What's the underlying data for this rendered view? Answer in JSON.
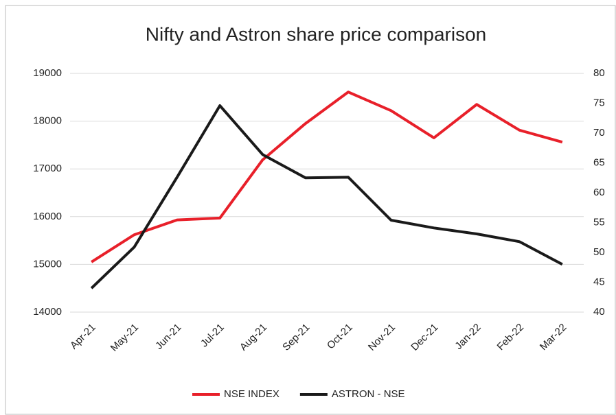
{
  "chart_data": {
    "type": "line",
    "title": "Nifty and Astron share price comparison",
    "categories": [
      "Apr-21",
      "May-21",
      "Jun-21",
      "Jul-21",
      "Aug-21",
      "Sep-21",
      "Oct-21",
      "Nov-21",
      "Dec-21",
      "Jan-22",
      "Feb-22",
      "Mar-22"
    ],
    "series": [
      {
        "name": "NSE INDEX",
        "color": "#e8202a",
        "values": [
          15050,
          15620,
          15930,
          15970,
          17190,
          17950,
          18610,
          18220,
          17650,
          18350,
          17810,
          17560
        ]
      },
      {
        "name": "ASTRON - NSE",
        "color": "#1a1a1a",
        "axis": "y2",
        "values": [
          44.0,
          50.9,
          62.6,
          74.6,
          66.4,
          62.5,
          62.6,
          55.4,
          54.1,
          53.1,
          51.8,
          48.0
        ]
      }
    ],
    "ylim": [
      14000,
      19000
    ],
    "yticks": [
      14000,
      15000,
      16000,
      17000,
      18000,
      19000
    ],
    "y2lim": [
      40,
      80
    ],
    "y2ticks": [
      40,
      45,
      50,
      55,
      60,
      65,
      70,
      75,
      80
    ],
    "grid": true,
    "legend": "bottom"
  }
}
